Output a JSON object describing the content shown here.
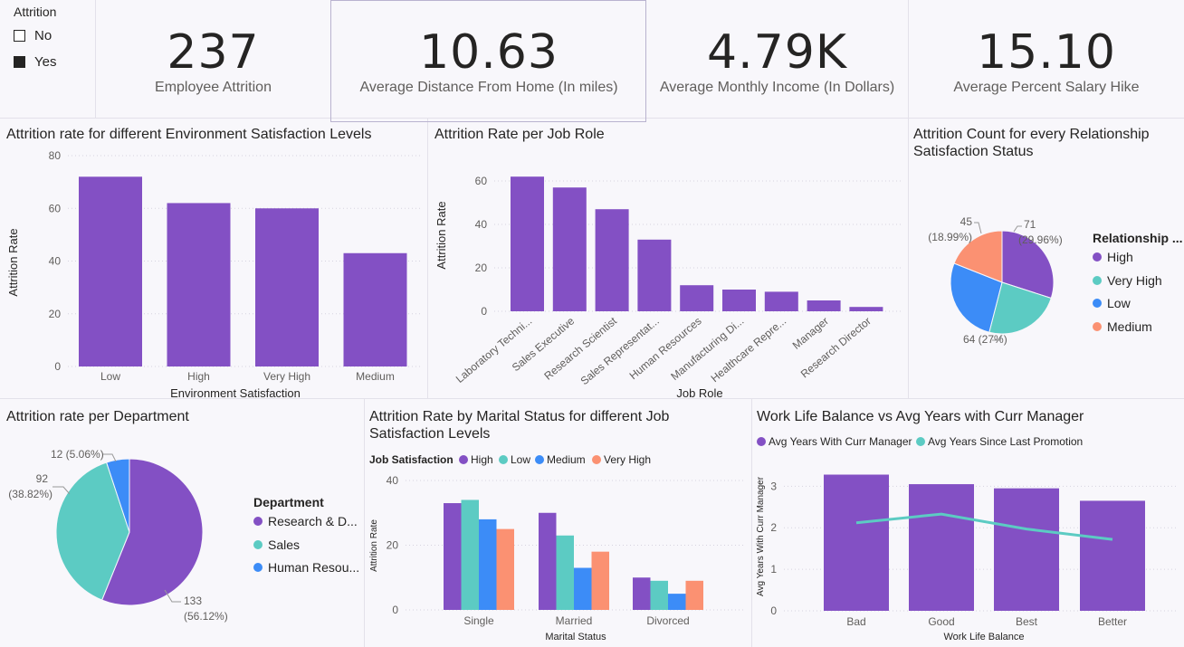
{
  "slicer": {
    "title": "Attrition",
    "items": [
      {
        "label": "No",
        "checked": false
      },
      {
        "label": "Yes",
        "checked": true
      }
    ]
  },
  "kpis": [
    {
      "value": "237",
      "label": "Employee Attrition"
    },
    {
      "value": "10.63",
      "label": "Average Distance From Home (In miles)"
    },
    {
      "value": "4.79K",
      "label": "Average Monthly Income (In Dollars)"
    },
    {
      "value": "15.10",
      "label": "Average Percent Salary Hike"
    }
  ],
  "colors": {
    "purple": "#8350c4",
    "teal": "#5ccbc3",
    "blue": "#3c8cf7",
    "salmon": "#fb9172"
  },
  "chart_data": [
    {
      "id": "env",
      "type": "bar",
      "title": "Attrition rate for different Environment Satisfaction Levels",
      "xlabel": "Environment Satisfaction",
      "ylabel": "Attrition Rate",
      "categories": [
        "Low",
        "High",
        "Very High",
        "Medium"
      ],
      "values": [
        72,
        62,
        60,
        43
      ],
      "ylim": [
        0,
        80
      ],
      "yticks": [
        0,
        20,
        40,
        60,
        80
      ]
    },
    {
      "id": "job",
      "type": "bar",
      "title": "Attrition Rate per Job Role",
      "xlabel": "Job Role",
      "ylabel": "Attrition Rate",
      "categories": [
        "Laboratory Techni...",
        "Sales Executive",
        "Research Scientist",
        "Sales Representat...",
        "Human Resources",
        "Manufacturing Di...",
        "Healthcare Repre...",
        "Manager",
        "Research Director"
      ],
      "values": [
        62,
        57,
        47,
        33,
        12,
        10,
        9,
        5,
        2
      ],
      "ylim": [
        0,
        65
      ],
      "yticks": [
        0,
        20,
        40,
        60
      ]
    },
    {
      "id": "rel",
      "type": "pie",
      "title": "Attrition Count for every Relationship Satisfaction Status",
      "legend_title": "Relationship ...",
      "slices": [
        {
          "name": "High",
          "value": 71,
          "label": "71",
          "pct": "(29.96%)"
        },
        {
          "name": "Very High",
          "value": 57
        },
        {
          "name": "Low",
          "value": 64,
          "label": "64 (27%)"
        },
        {
          "name": "Medium",
          "value": 45,
          "label": "45",
          "pct": "(18.99%)"
        }
      ]
    },
    {
      "id": "dept",
      "type": "pie",
      "title": "Attrition rate per Department",
      "legend_title": "Department",
      "slices": [
        {
          "name": "Research & D...",
          "value": 133,
          "label": "133",
          "pct": "(56.12%)"
        },
        {
          "name": "Sales",
          "value": 92,
          "label": "92",
          "pct": "(38.82%)"
        },
        {
          "name": "Human Resou...",
          "value": 12,
          "label": "12 (5.06%)"
        }
      ]
    },
    {
      "id": "marital",
      "type": "bar",
      "title": "Attrition Rate by Marital Status for different Job Satisfaction Levels",
      "legend_title": "Job Satisfaction",
      "xlabel": "Marital Status",
      "ylabel": "Attrition Rate",
      "categories": [
        "Single",
        "Married",
        "Divorced"
      ],
      "series": [
        {
          "name": "High",
          "values": [
            33,
            30,
            10
          ]
        },
        {
          "name": "Low",
          "values": [
            34,
            23,
            9
          ]
        },
        {
          "name": "Medium",
          "values": [
            28,
            13,
            5
          ]
        },
        {
          "name": "Very High",
          "values": [
            25,
            18,
            9
          ]
        }
      ],
      "ylim": [
        0,
        40
      ],
      "yticks": [
        0,
        20,
        40
      ]
    },
    {
      "id": "wlb",
      "type": "bar",
      "title": "Work Life Balance vs Avg Years with Curr Manager",
      "xlabel": "Work Life Balance",
      "ylabel": "Avg Years With Curr Manager",
      "categories": [
        "Bad",
        "Good",
        "Best",
        "Better"
      ],
      "series": [
        {
          "name": "Avg Years With Curr Manager",
          "values": [
            3.28,
            3.05,
            2.95,
            2.65
          ]
        },
        {
          "name": "Avg Years Since Last Promotion",
          "values": [
            2.12,
            2.33,
            1.97,
            1.72
          ]
        }
      ],
      "ylim": [
        0,
        3.4
      ],
      "yticks": [
        0,
        1,
        2,
        3
      ]
    }
  ]
}
